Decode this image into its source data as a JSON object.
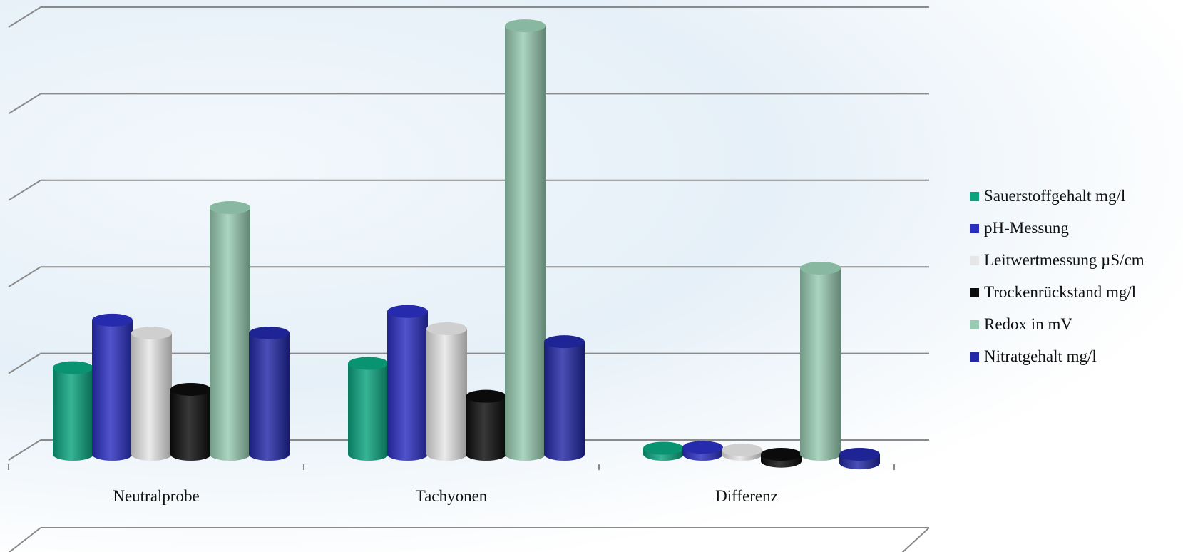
{
  "chart_data": {
    "type": "bar",
    "categories": [
      "Neutralprobe",
      "Tachyonen",
      "Differenz"
    ],
    "series": [
      {
        "name": "Sauerstoffgehalt mg/l",
        "color": "#0aa37e",
        "values": [
          1.0,
          1.05,
          0.07
        ]
      },
      {
        "name": "pH-Messung",
        "color": "#2a2fc0",
        "values": [
          1.55,
          1.65,
          0.08
        ]
      },
      {
        "name": "Leitwertmessung µS/cm",
        "color": "#e6e6e6",
        "values": [
          1.4,
          1.45,
          0.05
        ]
      },
      {
        "name": "Trockenrückstand mg/l",
        "color": "#0c0c0c",
        "values": [
          0.75,
          0.67,
          -0.08
        ]
      },
      {
        "name": "Redox in mV",
        "color": "#98ccb2",
        "values": [
          2.85,
          4.95,
          2.15
        ]
      },
      {
        "name": "Nitratgehalt mg/l",
        "color": "#2228a6",
        "values": [
          1.4,
          1.3,
          -0.1
        ]
      }
    ],
    "ylim": [
      -1,
      5
    ],
    "grid": true,
    "legend": "right",
    "three_d": true
  }
}
